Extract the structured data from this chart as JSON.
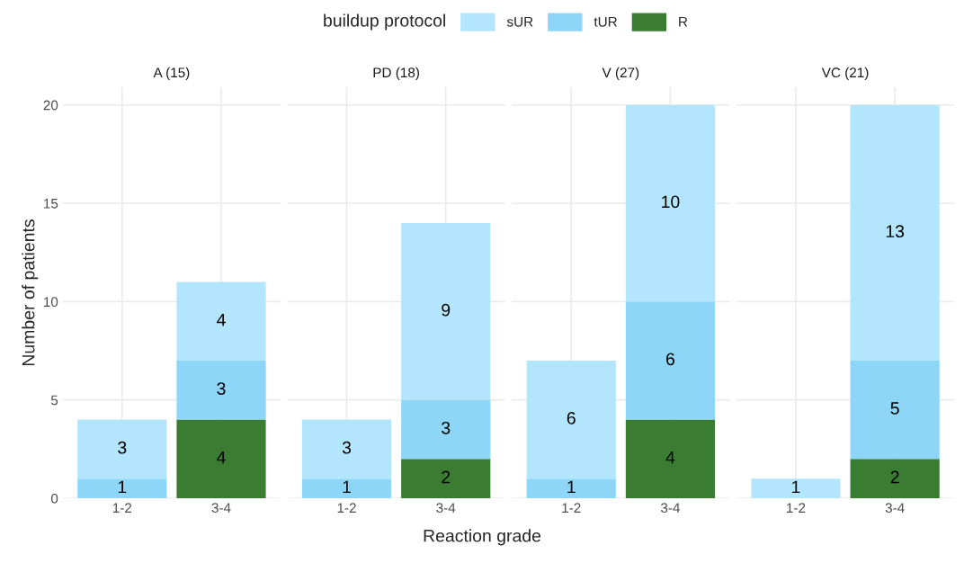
{
  "chart_data": [
    {
      "type": "bar",
      "title": "A (15)",
      "ylabel": "Number of patients",
      "legend_title": "buildup protocol",
      "legend": "top",
      "stacked": true,
      "data_labels": true,
      "grid": true,
      "categories": [
        "1-2",
        "3-4"
      ],
      "ylim": [
        0,
        20.9
      ],
      "yticks": [
        0,
        5,
        10,
        15,
        20
      ],
      "series": [
        {
          "name": "R",
          "color": "#3a7d32",
          "values": [
            null,
            4
          ]
        },
        {
          "name": "tUR",
          "color": "#8ed6f8",
          "values": [
            1,
            3
          ]
        },
        {
          "name": "sUR",
          "color": "#b3e6fc",
          "values": [
            3,
            4
          ]
        }
      ]
    },
    {
      "type": "bar",
      "title": "PD (18)",
      "xlabel": "Reaction grade",
      "stacked": true,
      "data_labels": true,
      "grid": true,
      "tick_labels": "x",
      "categories": [
        "1-2",
        "3-4"
      ],
      "ylim": [
        0,
        20.9
      ],
      "yticks": [
        0,
        5,
        10,
        15,
        20
      ],
      "series": [
        {
          "color": "#3a7d32",
          "values": [
            null,
            2
          ]
        },
        {
          "color": "#8ed6f8",
          "values": [
            1,
            3
          ]
        },
        {
          "color": "#b3e6fc",
          "values": [
            3,
            9
          ]
        }
      ]
    },
    {
      "type": "bar",
      "title": "V (27)",
      "stacked": true,
      "data_labels": true,
      "grid": true,
      "tick_labels": "x",
      "categories": [
        "1-2",
        "3-4"
      ],
      "ylim": [
        0,
        20.9
      ],
      "yticks": [
        0,
        5,
        10,
        15,
        20
      ],
      "series": [
        {
          "color": "#3a7d32",
          "values": [
            null,
            4
          ]
        },
        {
          "color": "#8ed6f8",
          "values": [
            1,
            6
          ]
        },
        {
          "color": "#b3e6fc",
          "values": [
            6,
            10
          ]
        }
      ]
    },
    {
      "type": "bar",
      "title": "VC (21)",
      "stacked": true,
      "data_labels": true,
      "grid": true,
      "tick_labels": "x",
      "categories": [
        "1-2",
        "3-4"
      ],
      "ylim": [
        0,
        20.9
      ],
      "yticks": [
        0,
        5,
        10,
        15,
        20
      ],
      "series": [
        {
          "color": "#3a7d32",
          "values": [
            null,
            2
          ]
        },
        {
          "color": "#8ed6f8",
          "values": [
            null,
            5
          ]
        },
        {
          "color": "#b3e6fc",
          "values": [
            1,
            13
          ]
        }
      ]
    }
  ]
}
